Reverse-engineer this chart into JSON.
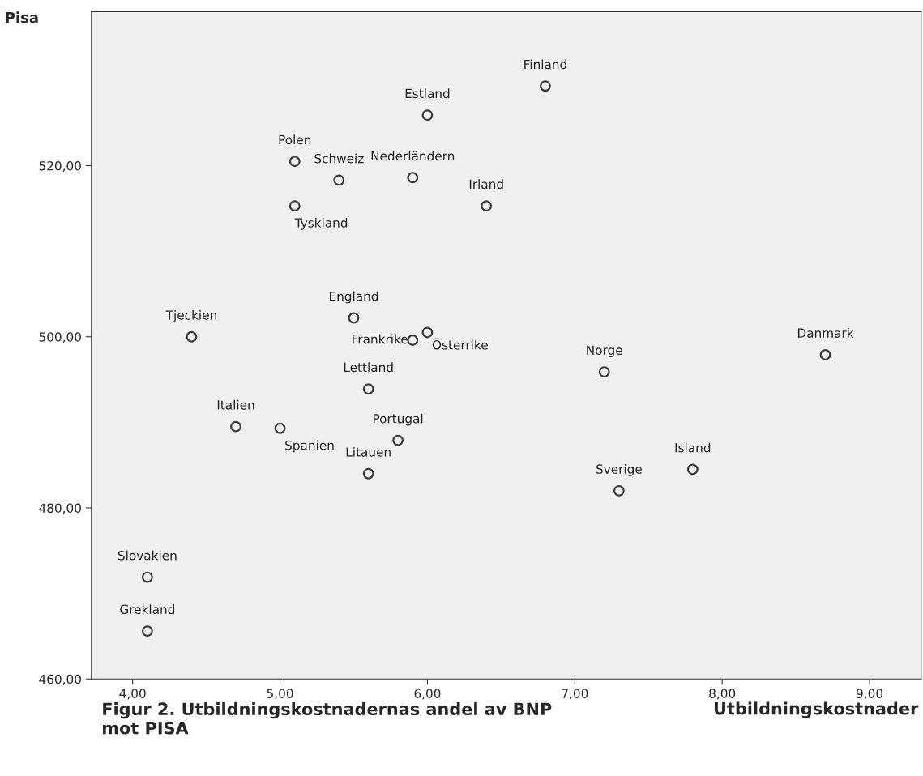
{
  "chart_data": {
    "type": "scatter",
    "title": "Figur 2. Utbildningskostnadernas andel av BNP mot PISA",
    "xlabel": "Utbildningskostnader",
    "ylabel": "Pisa",
    "series": [
      {
        "color": "#3a3a3a",
        "x": [
          6.8,
          6.0,
          5.1,
          5.4,
          5.9,
          6.4,
          5.1,
          5.5,
          4.4,
          5.9,
          6.0,
          8.7,
          7.2,
          5.6,
          4.7,
          5.0,
          5.8,
          5.6,
          7.8,
          7.3,
          4.1,
          4.1
        ],
        "values": [
          529.3,
          525.9,
          520.5,
          518.3,
          518.6,
          515.3,
          515.3,
          502.2,
          500.0,
          499.6,
          500.5,
          497.9,
          495.9,
          493.9,
          489.5,
          489.3,
          487.9,
          484.0,
          484.5,
          482.0,
          471.9,
          465.6
        ]
      }
    ],
    "annotations": [
      {
        "text": "Finland",
        "x": 6.8,
        "y": 529.3
      },
      {
        "text": "Estland",
        "x": 6.0,
        "y": 525.9
      },
      {
        "text": "Polen",
        "x": 5.1,
        "y": 520.5
      },
      {
        "text": "Schweiz",
        "x": 5.4,
        "y": 518.3
      },
      {
        "text": "Nederländern",
        "x": 5.9,
        "y": 518.6
      },
      {
        "text": "Irland",
        "x": 6.4,
        "y": 515.3
      },
      {
        "text": "Tyskland",
        "x": 5.1,
        "y": 515.3
      },
      {
        "text": "England",
        "x": 5.5,
        "y": 502.2
      },
      {
        "text": "Tjeckien",
        "x": 4.4,
        "y": 500.0
      },
      {
        "text": "Frankrike",
        "x": 5.9,
        "y": 499.6
      },
      {
        "text": "Österrike",
        "x": 6.0,
        "y": 500.5
      },
      {
        "text": "Danmark",
        "x": 8.7,
        "y": 497.9
      },
      {
        "text": "Norge",
        "x": 7.2,
        "y": 495.9
      },
      {
        "text": "Lettland",
        "x": 5.6,
        "y": 493.9
      },
      {
        "text": "Italien",
        "x": 4.7,
        "y": 489.5
      },
      {
        "text": "Spanien",
        "x": 5.0,
        "y": 489.3
      },
      {
        "text": "Portugal",
        "x": 5.8,
        "y": 487.9
      },
      {
        "text": "Litauen",
        "x": 5.6,
        "y": 484.0
      },
      {
        "text": "Island",
        "x": 7.8,
        "y": 484.5
      },
      {
        "text": "Sverige",
        "x": 7.3,
        "y": 482.0
      },
      {
        "text": "Slovakien",
        "x": 4.1,
        "y": 471.9
      },
      {
        "text": "Grekland",
        "x": 4.1,
        "y": 465.6
      }
    ],
    "xlim": [
      3.72,
      9.35
    ],
    "ylim": [
      460,
      538
    ],
    "xticks": [
      {
        "value": 4,
        "label": "4,00"
      },
      {
        "value": 5,
        "label": "5,00"
      },
      {
        "value": 6,
        "label": "6,00"
      },
      {
        "value": 7,
        "label": "7,00"
      },
      {
        "value": 8,
        "label": "8,00"
      },
      {
        "value": 9,
        "label": "9,00"
      }
    ],
    "yticks": [
      {
        "value": 460,
        "label": "460,00"
      },
      {
        "value": 480,
        "label": "480,00"
      },
      {
        "value": 500,
        "label": "500,00"
      },
      {
        "value": 520,
        "label": "520,00"
      }
    ],
    "grid": false,
    "legend": false,
    "marker": "circle"
  }
}
